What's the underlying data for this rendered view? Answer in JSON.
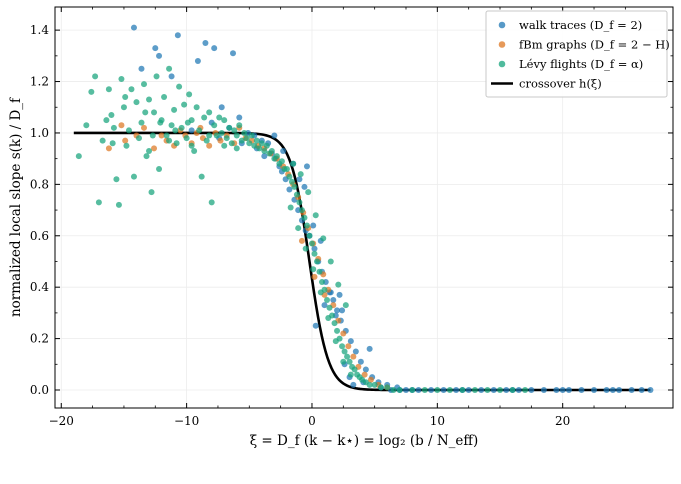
{
  "chart_data": {
    "type": "scatter",
    "xlabel": "ξ = D_f (k − k⋆) = log₂ (b / N_eff)",
    "ylabel": "normalized local slope s(k) / D_f",
    "xlim": [
      -20.5,
      28.8
    ],
    "ylim": [
      -0.07,
      1.49
    ],
    "xticks": [
      -20,
      -10,
      0,
      10,
      20
    ],
    "yticks": [
      0.0,
      0.2,
      0.4,
      0.6,
      0.8,
      1.0,
      1.2,
      1.4
    ],
    "grid": true,
    "legend_position": "top-right",
    "legend": [
      {
        "label": "walk traces (D_f = 2)",
        "kind": "marker",
        "color": "#1f77b4"
      },
      {
        "label": "fBm graphs (D_f = 2 − H)",
        "kind": "marker",
        "color": "#dd7722"
      },
      {
        "label": "Lévy flights (D_f = α)",
        "kind": "marker",
        "color": "#16a47c"
      },
      {
        "label": "crossover h(ξ)",
        "kind": "line",
        "color": "#000000"
      }
    ],
    "series": [
      {
        "name": "walk traces (D_f = 2)",
        "color": "#1f77b4",
        "points": [
          [
            -14.2,
            1.41
          ],
          [
            -12.5,
            1.33
          ],
          [
            -12.2,
            1.3
          ],
          [
            -10.7,
            1.38
          ],
          [
            -8.5,
            1.35
          ],
          [
            -7.8,
            1.33
          ],
          [
            -6.3,
            1.31
          ],
          [
            -9.1,
            1.28
          ],
          [
            -13.6,
            1.25
          ],
          [
            -11.2,
            1.22
          ],
          [
            -7.2,
            1.1
          ],
          [
            -5.8,
            1.06
          ],
          [
            -5.1,
            1.0
          ],
          [
            -4.6,
            0.99
          ],
          [
            -4.0,
            0.97
          ],
          [
            -3.5,
            0.96
          ],
          [
            -3.2,
            0.92
          ],
          [
            -2.9,
            0.9
          ],
          [
            -4.4,
            0.94
          ],
          [
            -2.6,
            0.87
          ],
          [
            -2.4,
            0.85
          ],
          [
            -2.1,
            0.82
          ],
          [
            -1.8,
            0.78
          ],
          [
            -1.4,
            0.74
          ],
          [
            -1.1,
            0.7
          ],
          [
            -0.8,
            0.66
          ],
          [
            -0.5,
            0.62
          ],
          [
            -0.2,
            0.6
          ],
          [
            0.2,
            0.55
          ],
          [
            0.5,
            0.5
          ],
          [
            0.8,
            0.46
          ],
          [
            1.1,
            0.42
          ],
          [
            1.4,
            0.38
          ],
          [
            1.7,
            0.35
          ],
          [
            2.0,
            0.31
          ],
          [
            2.3,
            0.27
          ],
          [
            2.7,
            0.23
          ],
          [
            3.1,
            0.19
          ],
          [
            3.5,
            0.15
          ],
          [
            3.9,
            0.11
          ],
          [
            4.3,
            0.08
          ],
          [
            4.8,
            0.05
          ],
          [
            5.3,
            0.03
          ],
          [
            6.0,
            0.02
          ],
          [
            6.8,
            0.01
          ],
          [
            -0.4,
            0.87
          ],
          [
            -0.6,
            0.79
          ],
          [
            0.7,
            0.58
          ],
          [
            1.5,
            0.38
          ],
          [
            2.4,
            0.31
          ],
          [
            1.9,
            0.29
          ],
          [
            3.3,
            0.02
          ],
          [
            4.1,
            0.03
          ],
          [
            3.0,
            0.05
          ],
          [
            2.6,
            0.1
          ],
          [
            4.6,
            0.16
          ],
          [
            -8.0,
            1.04
          ],
          [
            -6.6,
            1.02
          ],
          [
            -9.6,
            1.01
          ],
          [
            -7.4,
            0.98
          ],
          [
            -5.6,
            0.96
          ],
          [
            -3.8,
            0.91
          ],
          [
            0.3,
            0.25
          ],
          [
            1.0,
            0.33
          ],
          [
            2.2,
            0.37
          ],
          [
            -2.3,
            0.93
          ],
          [
            -3.0,
            0.99
          ],
          [
            -1.5,
            0.88
          ],
          [
            -1.0,
            0.82
          ],
          [
            0.1,
            0.64
          ],
          [
            7.5,
            0.0
          ],
          [
            8.5,
            0.0
          ],
          [
            9.5,
            0.0
          ],
          [
            10.5,
            0.0
          ],
          [
            11.5,
            0.0
          ],
          [
            12.5,
            0.0
          ],
          [
            13.5,
            0.0
          ],
          [
            14.5,
            0.0
          ],
          [
            15.5,
            0.0
          ],
          [
            16.5,
            0.0
          ],
          [
            17.5,
            0.0
          ],
          [
            18.5,
            0.0
          ],
          [
            19.5,
            0.0
          ],
          [
            20.5,
            0.0
          ],
          [
            21.5,
            0.0
          ],
          [
            22.5,
            0.0
          ],
          [
            23.5,
            0.0
          ],
          [
            24.5,
            0.0
          ],
          [
            25.5,
            0.0
          ],
          [
            26.3,
            0.0
          ],
          [
            27.0,
            0.0
          ],
          [
            8.0,
            0.0
          ],
          [
            12.0,
            0.0
          ],
          [
            16.0,
            0.0
          ],
          [
            20.0,
            0.0
          ],
          [
            24.0,
            0.0
          ],
          [
            5.5,
            0.01
          ],
          [
            6.3,
            0.0
          ],
          [
            7.0,
            0.0
          ]
        ]
      },
      {
        "name": "fBm graphs (D_f = 2 − H)",
        "color": "#dd7722",
        "points": [
          [
            -16.2,
            0.94
          ],
          [
            -15.2,
            1.03
          ],
          [
            -14.9,
            0.97
          ],
          [
            -13.4,
            1.02
          ],
          [
            -12.6,
            0.94
          ],
          [
            -11.6,
            0.97
          ],
          [
            -11.0,
            0.95
          ],
          [
            -10.1,
            0.99
          ],
          [
            -9.6,
            0.96
          ],
          [
            -9.2,
            1.0
          ],
          [
            -8.7,
            0.98
          ],
          [
            -8.2,
            0.95
          ],
          [
            -7.7,
            1.0
          ],
          [
            -7.3,
            0.97
          ],
          [
            -6.8,
            0.99
          ],
          [
            -6.2,
            0.96
          ],
          [
            -5.8,
            1.02
          ],
          [
            -5.3,
            0.98
          ],
          [
            -4.8,
            0.97
          ],
          [
            -4.3,
            0.95
          ],
          [
            -3.8,
            0.94
          ],
          [
            -3.3,
            0.92
          ],
          [
            -2.8,
            0.9
          ],
          [
            -2.3,
            0.87
          ],
          [
            -1.9,
            0.84
          ],
          [
            -1.5,
            0.8
          ],
          [
            -1.1,
            0.75
          ],
          [
            -0.7,
            0.69
          ],
          [
            -0.3,
            0.63
          ],
          [
            0.1,
            0.57
          ],
          [
            0.5,
            0.51
          ],
          [
            0.9,
            0.45
          ],
          [
            1.3,
            0.39
          ],
          [
            1.7,
            0.33
          ],
          [
            2.1,
            0.27
          ],
          [
            2.5,
            0.22
          ],
          [
            2.9,
            0.17
          ],
          [
            3.3,
            0.13
          ],
          [
            3.7,
            0.09
          ],
          [
            4.2,
            0.06
          ],
          [
            4.7,
            0.04
          ],
          [
            5.3,
            0.02
          ],
          [
            6.0,
            0.01
          ],
          [
            -0.8,
            0.58
          ],
          [
            0.2,
            0.44
          ],
          [
            1.0,
            0.37
          ],
          [
            -12.0,
            0.99
          ],
          [
            -10.5,
            1.01
          ],
          [
            -8.9,
            1.02
          ],
          [
            -14.0,
            0.99
          ]
        ]
      },
      {
        "name": "Lévy flights (D_f = α)",
        "color": "#16a47c",
        "points": [
          [
            -18.6,
            0.91
          ],
          [
            -18.0,
            1.03
          ],
          [
            -17.6,
            1.16
          ],
          [
            -17.3,
            1.22
          ],
          [
            -17.0,
            0.73
          ],
          [
            -16.7,
            0.97
          ],
          [
            -16.2,
            1.17
          ],
          [
            -16.0,
            1.07
          ],
          [
            -15.8,
            1.02
          ],
          [
            -15.6,
            0.82
          ],
          [
            -15.4,
            0.72
          ],
          [
            -15.2,
            1.21
          ],
          [
            -15.0,
            1.1
          ],
          [
            -14.8,
            0.95
          ],
          [
            -14.6,
            1.01
          ],
          [
            -14.4,
            1.17
          ],
          [
            -14.2,
            0.83
          ],
          [
            -14.0,
            1.12
          ],
          [
            -13.8,
            0.98
          ],
          [
            -13.6,
            1.04
          ],
          [
            -13.4,
            1.19
          ],
          [
            -13.2,
            0.91
          ],
          [
            -13.0,
            1.13
          ],
          [
            -12.8,
            0.77
          ],
          [
            -12.6,
            1.08
          ],
          [
            -12.4,
            1.22
          ],
          [
            -12.2,
            0.86
          ],
          [
            -12.0,
            1.05
          ],
          [
            -11.8,
            1.14
          ],
          [
            -11.6,
            0.99
          ],
          [
            -11.4,
            1.25
          ],
          [
            -11.2,
            1.03
          ],
          [
            -11.0,
            1.09
          ],
          [
            -10.8,
            0.96
          ],
          [
            -10.6,
            1.18
          ],
          [
            -10.4,
            1.02
          ],
          [
            -10.2,
            1.11
          ],
          [
            -10.0,
            0.98
          ],
          [
            -9.8,
            1.15
          ],
          [
            -9.6,
            1.05
          ],
          [
            -9.4,
            0.93
          ],
          [
            -9.2,
            1.1
          ],
          [
            -9.0,
            1.01
          ],
          [
            -8.8,
            0.83
          ],
          [
            -8.6,
            1.06
          ],
          [
            -8.4,
            0.97
          ],
          [
            -8.2,
            1.08
          ],
          [
            -8.0,
            0.73
          ],
          [
            -7.8,
            1.03
          ],
          [
            -7.6,
            0.99
          ],
          [
            -7.4,
            1.06
          ],
          [
            -7.2,
            1.0
          ],
          [
            -7.0,
            1.05
          ],
          [
            -6.8,
            0.98
          ],
          [
            -6.6,
            1.02
          ],
          [
            -6.4,
            0.96
          ],
          [
            -6.2,
            1.01
          ],
          [
            -6.0,
            0.99
          ],
          [
            -5.8,
            1.03
          ],
          [
            -5.6,
            0.97
          ],
          [
            -5.4,
            1.0
          ],
          [
            -5.2,
            0.98
          ],
          [
            -5.0,
            0.96
          ],
          [
            -4.8,
            0.99
          ],
          [
            -4.6,
            0.95
          ],
          [
            -4.4,
            0.97
          ],
          [
            -4.2,
            0.94
          ],
          [
            -4.0,
            0.96
          ],
          [
            -3.8,
            0.93
          ],
          [
            -3.6,
            0.95
          ],
          [
            -3.4,
            0.92
          ],
          [
            -3.2,
            0.93
          ],
          [
            -3.0,
            0.9
          ],
          [
            -2.8,
            0.91
          ],
          [
            -2.6,
            0.88
          ],
          [
            -2.4,
            0.89
          ],
          [
            -2.2,
            0.86
          ],
          [
            -2.0,
            0.86
          ],
          [
            -1.8,
            0.83
          ],
          [
            -1.6,
            0.81
          ],
          [
            -1.4,
            0.79
          ],
          [
            -1.2,
            0.76
          ],
          [
            -1.0,
            0.73
          ],
          [
            -0.8,
            0.7
          ],
          [
            -0.6,
            0.67
          ],
          [
            -0.4,
            0.64
          ],
          [
            -0.2,
            0.6
          ],
          [
            0.0,
            0.57
          ],
          [
            0.2,
            0.53
          ],
          [
            0.4,
            0.5
          ],
          [
            0.6,
            0.46
          ],
          [
            0.8,
            0.42
          ],
          [
            1.0,
            0.39
          ],
          [
            1.2,
            0.35
          ],
          [
            1.4,
            0.32
          ],
          [
            1.6,
            0.29
          ],
          [
            1.8,
            0.26
          ],
          [
            2.0,
            0.23
          ],
          [
            2.2,
            0.2
          ],
          [
            2.4,
            0.17
          ],
          [
            2.6,
            0.15
          ],
          [
            2.8,
            0.13
          ],
          [
            3.0,
            0.11
          ],
          [
            3.2,
            0.09
          ],
          [
            3.4,
            0.08
          ],
          [
            3.6,
            0.06
          ],
          [
            3.8,
            0.05
          ],
          [
            4.0,
            0.04
          ],
          [
            4.3,
            0.03
          ],
          [
            4.6,
            0.02
          ],
          [
            5.0,
            0.02
          ],
          [
            5.5,
            0.01
          ],
          [
            6.0,
            0.01
          ],
          [
            6.5,
            0.0
          ],
          [
            7.0,
            0.0
          ],
          [
            -1.5,
            0.88
          ],
          [
            -0.9,
            0.84
          ],
          [
            -0.3,
            0.77
          ],
          [
            0.3,
            0.68
          ],
          [
            0.9,
            0.59
          ],
          [
            1.5,
            0.5
          ],
          [
            2.1,
            0.41
          ],
          [
            2.7,
            0.33
          ],
          [
            -1.7,
            0.71
          ],
          [
            -1.1,
            0.63
          ],
          [
            -0.5,
            0.55
          ],
          [
            0.1,
            0.47
          ],
          [
            0.7,
            0.38
          ],
          [
            1.3,
            0.28
          ],
          [
            1.9,
            0.19
          ],
          [
            2.5,
            0.11
          ],
          [
            3.1,
            0.06
          ],
          [
            -9.6,
            0.95
          ],
          [
            -11.4,
            0.97
          ],
          [
            -13.0,
            0.93
          ],
          [
            -12.1,
            1.04
          ],
          [
            -8.2,
            0.99
          ],
          [
            -7.0,
            0.95
          ],
          [
            -6.0,
            0.94
          ],
          [
            -10.9,
            1.01
          ],
          [
            -9.9,
            1.04
          ],
          [
            -12.7,
            0.99
          ],
          [
            -16.4,
            1.05
          ],
          [
            -14.9,
            1.14
          ],
          [
            -13.3,
            1.08
          ],
          [
            -15.9,
            0.96
          ],
          [
            8.0,
            0.0
          ],
          [
            9.0,
            0.0
          ],
          [
            10.0,
            0.0
          ],
          [
            11.0,
            0.0
          ],
          [
            12.0,
            0.0
          ],
          [
            13.0,
            0.0
          ],
          [
            14.0,
            0.0
          ],
          [
            15.0,
            0.0
          ],
          [
            16.0,
            0.0
          ],
          [
            17.0,
            0.0
          ]
        ]
      }
    ],
    "curve": {
      "name": "crossover h(ξ)",
      "color": "#000000",
      "formula": "h(xi) = 1 / (1 + exp(1.35 * (xi + 0.2)))",
      "x_range": [
        -19,
        27
      ]
    }
  }
}
